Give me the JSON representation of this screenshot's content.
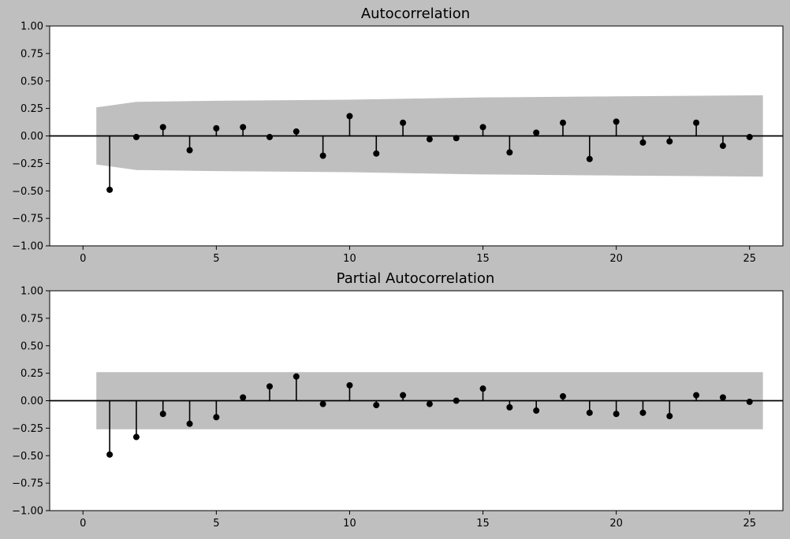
{
  "chart_data": [
    {
      "type": "stem",
      "title": "Autocorrelation",
      "xlabel": "",
      "ylabel": "",
      "xlim": [
        -1.25,
        26.25
      ],
      "ylim": [
        -1.0,
        1.0
      ],
      "x_ticks": [
        0,
        5,
        10,
        15,
        20,
        25
      ],
      "y_ticks": [
        1.0,
        0.75,
        0.5,
        0.25,
        0.0,
        -0.25,
        -0.5,
        -0.75,
        -1.0
      ],
      "x_tick_labels": [
        "0",
        "5",
        "10",
        "15",
        "20",
        "25"
      ],
      "y_tick_labels": [
        "1.00",
        "0.75",
        "0.50",
        "0.25",
        "0.00",
        "−0.25",
        "−0.50",
        "−0.75",
        "−1.00"
      ],
      "lags": [
        1,
        2,
        3,
        4,
        5,
        6,
        7,
        8,
        9,
        10,
        11,
        12,
        13,
        14,
        15,
        16,
        17,
        18,
        19,
        20,
        21,
        22,
        23,
        24,
        25
      ],
      "values": [
        -0.49,
        -0.01,
        0.08,
        -0.13,
        0.07,
        0.08,
        -0.01,
        0.04,
        -0.18,
        0.18,
        -0.16,
        0.12,
        -0.03,
        -0.02,
        0.08,
        -0.15,
        0.03,
        0.12,
        -0.21,
        0.13,
        -0.06,
        -0.05,
        0.12,
        -0.09,
        -0.01
      ],
      "confidence_band": {
        "x": [
          0.5,
          2.0,
          5.0,
          10.0,
          15.0,
          20.0,
          25.5
        ],
        "upper": [
          0.26,
          0.31,
          0.32,
          0.33,
          0.35,
          0.36,
          0.37
        ]
      },
      "colors": {
        "background": "#bfbfbf",
        "axes": "#ffffff",
        "band": "#bfbfbf",
        "marker": "#000000"
      },
      "grid": false
    },
    {
      "type": "stem",
      "title": "Partial Autocorrelation",
      "xlabel": "",
      "ylabel": "",
      "xlim": [
        -1.25,
        26.25
      ],
      "ylim": [
        -1.0,
        1.0
      ],
      "x_ticks": [
        0,
        5,
        10,
        15,
        20,
        25
      ],
      "y_ticks": [
        1.0,
        0.75,
        0.5,
        0.25,
        0.0,
        -0.25,
        -0.5,
        -0.75,
        -1.0
      ],
      "x_tick_labels": [
        "0",
        "5",
        "10",
        "15",
        "20",
        "25"
      ],
      "y_tick_labels": [
        "1.00",
        "0.75",
        "0.50",
        "0.25",
        "0.00",
        "−0.25",
        "−0.50",
        "−0.75",
        "−1.00"
      ],
      "lags": [
        1,
        2,
        3,
        4,
        5,
        6,
        7,
        8,
        9,
        10,
        11,
        12,
        13,
        14,
        15,
        16,
        17,
        18,
        19,
        20,
        21,
        22,
        23,
        24,
        25
      ],
      "values": [
        -0.49,
        -0.33,
        -0.12,
        -0.21,
        -0.15,
        0.03,
        0.13,
        0.22,
        -0.03,
        0.14,
        -0.04,
        0.05,
        -0.03,
        0.0,
        0.11,
        -0.06,
        -0.09,
        0.04,
        -0.11,
        -0.12,
        -0.11,
        -0.14,
        0.05,
        0.03,
        -0.01
      ],
      "confidence_band": {
        "x": [
          0.5,
          25.5
        ],
        "upper": [
          0.26,
          0.26
        ]
      },
      "colors": {
        "background": "#bfbfbf",
        "axes": "#ffffff",
        "band": "#bfbfbf",
        "marker": "#000000"
      },
      "grid": false
    }
  ]
}
